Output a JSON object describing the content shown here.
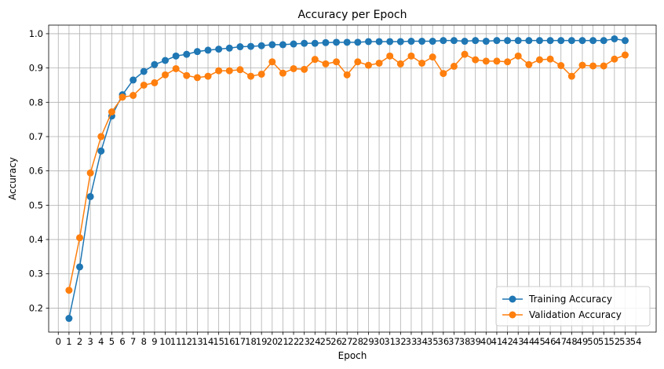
{
  "chart_data": {
    "type": "line",
    "title": "Accuracy per Epoch",
    "xlabel": "Epoch",
    "ylabel": "Accuracy",
    "xlim": [
      -0.9,
      55.9
    ],
    "ylim": [
      0.13,
      1.025
    ],
    "xticks": [
      0,
      1,
      2,
      3,
      4,
      5,
      6,
      7,
      8,
      9,
      10,
      11,
      12,
      13,
      14,
      15,
      16,
      17,
      18,
      19,
      20,
      21,
      22,
      23,
      24,
      25,
      26,
      27,
      28,
      29,
      30,
      31,
      32,
      33,
      34,
      35,
      36,
      37,
      38,
      39,
      40,
      41,
      42,
      43,
      44,
      45,
      46,
      47,
      48,
      49,
      50,
      51,
      52,
      53,
      54
    ],
    "yticks": [
      0.2,
      0.3,
      0.4,
      0.5,
      0.6,
      0.7,
      0.8,
      0.9,
      1.0
    ],
    "grid": true,
    "legend_position": "bottom-right",
    "x": [
      1,
      2,
      3,
      4,
      5,
      6,
      7,
      8,
      9,
      10,
      11,
      12,
      13,
      14,
      15,
      16,
      17,
      18,
      19,
      20,
      21,
      22,
      23,
      24,
      25,
      26,
      27,
      28,
      29,
      30,
      31,
      32,
      33,
      34,
      35,
      36,
      37,
      38,
      39,
      40,
      41,
      42,
      43,
      44,
      45,
      46,
      47,
      48,
      49,
      50,
      51,
      52,
      53
    ],
    "series": [
      {
        "name": "Training Accuracy",
        "color": "#1f77b4",
        "values": [
          0.17,
          0.32,
          0.525,
          0.658,
          0.76,
          0.822,
          0.865,
          0.89,
          0.91,
          0.922,
          0.935,
          0.94,
          0.948,
          0.952,
          0.955,
          0.958,
          0.962,
          0.963,
          0.965,
          0.968,
          0.968,
          0.97,
          0.972,
          0.972,
          0.974,
          0.975,
          0.975,
          0.975,
          0.977,
          0.977,
          0.977,
          0.977,
          0.978,
          0.978,
          0.978,
          0.98,
          0.98,
          0.978,
          0.98,
          0.978,
          0.98,
          0.98,
          0.98,
          0.98,
          0.98,
          0.98,
          0.98,
          0.98,
          0.98,
          0.98,
          0.98,
          0.985,
          0.98
        ]
      },
      {
        "name": "Validation Accuracy",
        "color": "#ff7f0e",
        "values": [
          0.252,
          0.405,
          0.594,
          0.7,
          0.772,
          0.815,
          0.82,
          0.85,
          0.857,
          0.88,
          0.898,
          0.878,
          0.872,
          0.876,
          0.892,
          0.892,
          0.895,
          0.876,
          0.882,
          0.918,
          0.885,
          0.898,
          0.896,
          0.925,
          0.912,
          0.918,
          0.88,
          0.918,
          0.908,
          0.914,
          0.935,
          0.912,
          0.935,
          0.914,
          0.932,
          0.884,
          0.905,
          0.94,
          0.924,
          0.92,
          0.92,
          0.918,
          0.935,
          0.91,
          0.924,
          0.926,
          0.907,
          0.876,
          0.908,
          0.906,
          0.906,
          0.926,
          0.938
        ]
      }
    ]
  }
}
